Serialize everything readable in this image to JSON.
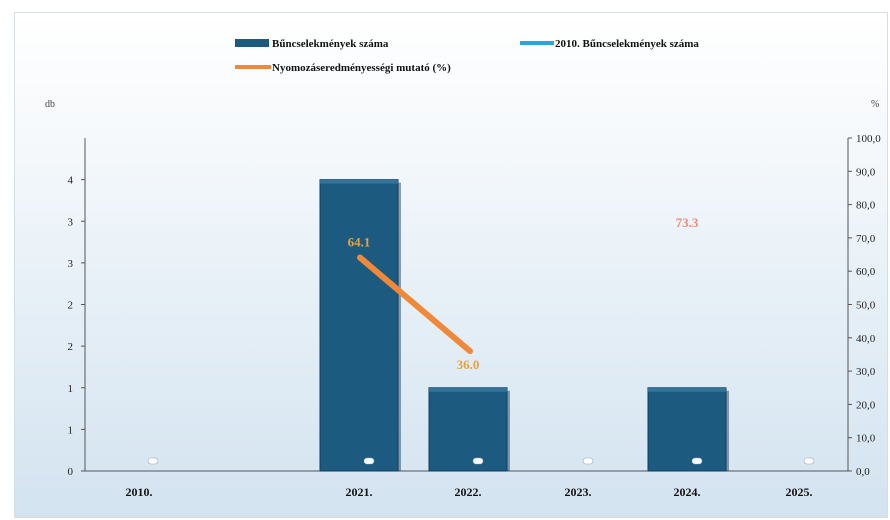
{
  "chart_data": {
    "type": "bar",
    "title": "",
    "categories": [
      "2010.",
      "2021.",
      "2022.",
      "2023.",
      "2024.",
      "2025."
    ],
    "ylabel": "db",
    "y2label": "%",
    "ylim": [
      0,
      4
    ],
    "y2lim": [
      0,
      100
    ],
    "y_tick_labels": [
      "0",
      "1",
      "1",
      "2",
      "2",
      "3",
      "3",
      "4"
    ],
    "y2_tick_labels": [
      "0,0",
      "10,0",
      "20,0",
      "30,0",
      "40,0",
      "50,0",
      "60,0",
      "70,0",
      "80,0",
      "90,0",
      "100,0"
    ],
    "grid": false,
    "legend_position": "top",
    "series": [
      {
        "name": "Bűncselekmények száma",
        "kind": "bar",
        "axis": "left",
        "color": "#1c5a80",
        "values": [
          0,
          3.5,
          1,
          0,
          1,
          0
        ]
      },
      {
        "name": "2010. Bűncselekmények száma",
        "kind": "bar",
        "axis": "left",
        "color": "#2aa3e0",
        "values": [
          0,
          0,
          0,
          0,
          0,
          0
        ]
      },
      {
        "name": "Nyomozáseredményességi mutató (%)",
        "kind": "line",
        "axis": "right",
        "color": "#f0883a",
        "values": [
          null,
          64.1,
          36.0,
          null,
          73.3,
          null
        ],
        "labels": [
          "",
          "64.1",
          "36.0",
          "",
          "73.3",
          ""
        ],
        "label_colors": [
          "",
          "#e8a23a",
          "#e8a23a",
          "",
          "#f08a7a",
          ""
        ]
      }
    ]
  }
}
